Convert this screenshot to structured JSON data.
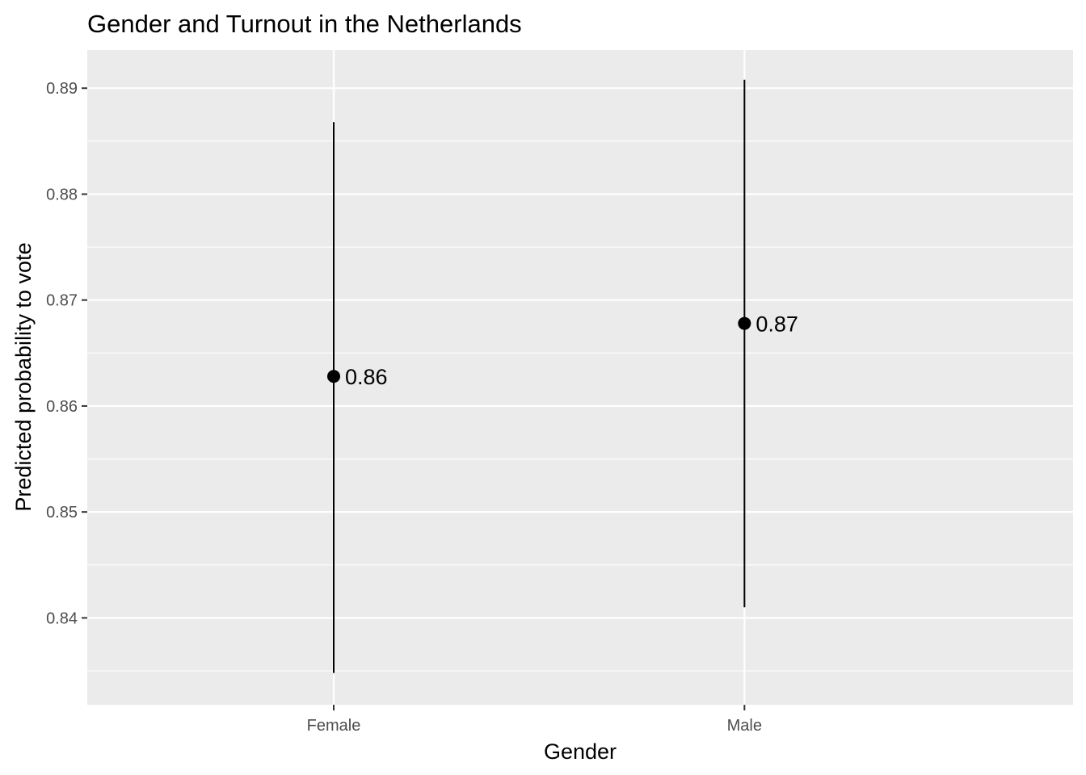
{
  "chart_data": {
    "type": "scatter",
    "title": "Gender and Turnout in the Netherlands",
    "xlabel": "Gender",
    "ylabel": "Predicted probability to vote",
    "categories": [
      "Female",
      "Male"
    ],
    "series": [
      {
        "points": [
          {
            "x": "Female",
            "y": 0.8628,
            "ymin": 0.8348,
            "ymax": 0.8868,
            "label": "0.86"
          },
          {
            "x": "Male",
            "y": 0.8678,
            "ymin": 0.841,
            "ymax": 0.8908,
            "label": "0.87"
          }
        ]
      }
    ],
    "yticks": [
      "0.84",
      "0.85",
      "0.86",
      "0.87",
      "0.88",
      "0.89"
    ],
    "ylim": [
      0.8318,
      0.8936
    ],
    "grid": true,
    "legend": "none",
    "colors": {
      "panel": "#ebebeb",
      "grid": "#ffffff",
      "point": "#000000",
      "errorbar": "#000000",
      "tick_text": "#4d4d4d",
      "tick_mark": "#333333"
    }
  }
}
